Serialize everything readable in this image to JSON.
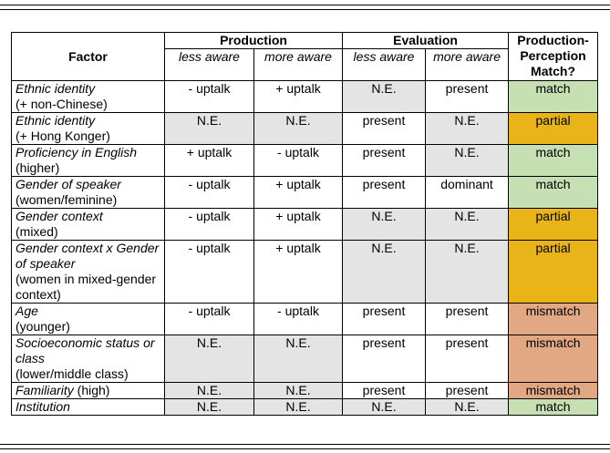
{
  "table": {
    "header": {
      "factor": "Factor",
      "groups": [
        "Production",
        "Evaluation"
      ],
      "sub": [
        "less aware",
        "more aware",
        "less aware",
        "more aware"
      ],
      "match": "Production-Perception Match?"
    },
    "shade_color": "#e4e4e4",
    "match_colors": {
      "match": "#c6e0b4",
      "partial": "#e8b418",
      "mismatch": "#e2a884"
    },
    "rows": [
      {
        "factor": "Ethnic identity",
        "detail": "(+ non-Chinese)",
        "cells": [
          "- uptalk",
          "+ uptalk",
          "N.E.",
          "present"
        ],
        "shaded": [
          2
        ],
        "match": "match"
      },
      {
        "factor": "Ethnic identity",
        "detail": "(+ Hong Konger)",
        "cells": [
          "N.E.",
          "N.E.",
          "present",
          "N.E."
        ],
        "shaded": [
          0,
          1,
          3
        ],
        "match": "partial"
      },
      {
        "factor": "Proficiency in English",
        "detail": "(higher)",
        "cells": [
          "+ uptalk",
          "- uptalk",
          "present",
          "N.E."
        ],
        "shaded": [
          3
        ],
        "match": "match"
      },
      {
        "factor": "Gender of speaker",
        "detail": "(women/feminine)",
        "cells": [
          "- uptalk",
          "+ uptalk",
          "present",
          "dominant"
        ],
        "shaded": [],
        "match": "match"
      },
      {
        "factor": "Gender context",
        "detail": "(mixed)",
        "cells": [
          "- uptalk",
          "+ uptalk",
          "N.E.",
          "N.E."
        ],
        "shaded": [
          2,
          3
        ],
        "match": "partial"
      },
      {
        "factor": "Gender context x Gender of speaker",
        "detail": "(women in mixed-gender context)",
        "cells": [
          "- uptalk",
          "+ uptalk",
          "N.E.",
          "N.E."
        ],
        "shaded": [
          2,
          3
        ],
        "match": "partial"
      },
      {
        "factor": "Age",
        "detail": "(younger)",
        "cells": [
          "- uptalk",
          "- uptalk",
          "present",
          "present"
        ],
        "shaded": [],
        "match": "mismatch"
      },
      {
        "factor": "Socioeconomic status or class",
        "detail": "(lower/middle class)",
        "cells": [
          "N.E.",
          "N.E.",
          "present",
          "present"
        ],
        "shaded": [
          0,
          1
        ],
        "match": "mismatch"
      },
      {
        "factor": "Familiarity",
        "detail": "(high)",
        "inline": true,
        "cells": [
          "N.E.",
          "N.E.",
          "present",
          "present"
        ],
        "shaded": [
          0,
          1
        ],
        "match": "mismatch"
      },
      {
        "factor": "Institution",
        "cells": [
          "N.E.",
          "N.E.",
          "N.E.",
          "N.E."
        ],
        "shaded": [
          0,
          1,
          2,
          3
        ],
        "match": "match"
      }
    ]
  }
}
